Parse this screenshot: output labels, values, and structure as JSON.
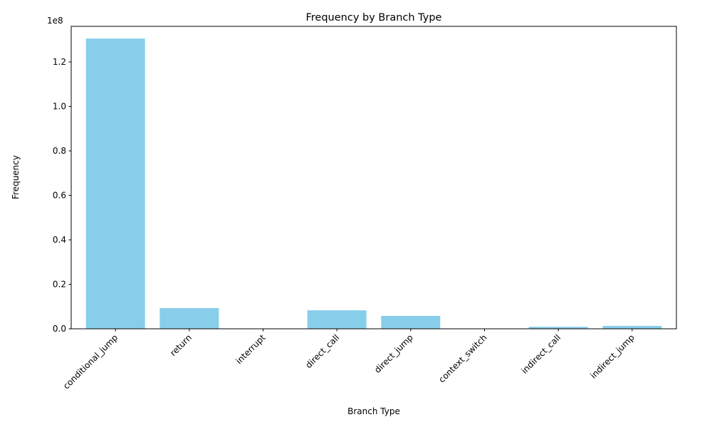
{
  "chart_data": {
    "type": "bar",
    "title": "Frequency by Branch Type",
    "xlabel": "Branch Type",
    "ylabel": "Frequency",
    "y_multiplier_label": "1e8",
    "categories": [
      "conditional_jump",
      "return",
      "interrupt",
      "direct_call",
      "direct_jump",
      "context_switch",
      "indirect_call",
      "indirect_jump"
    ],
    "values": [
      130500000,
      9300000,
      100000,
      8300000,
      5800000,
      50000,
      900000,
      1300000
    ],
    "ylim": [
      0,
      136000000
    ],
    "yticks": [
      0,
      20000000,
      40000000,
      60000000,
      80000000,
      100000000,
      120000000
    ],
    "ytick_labels": [
      "0.0",
      "0.2",
      "0.4",
      "0.6",
      "0.8",
      "1.0",
      "1.2"
    ],
    "bar_color": "#87ceeb",
    "grid": false,
    "x_tick_rotation_deg": 45
  }
}
